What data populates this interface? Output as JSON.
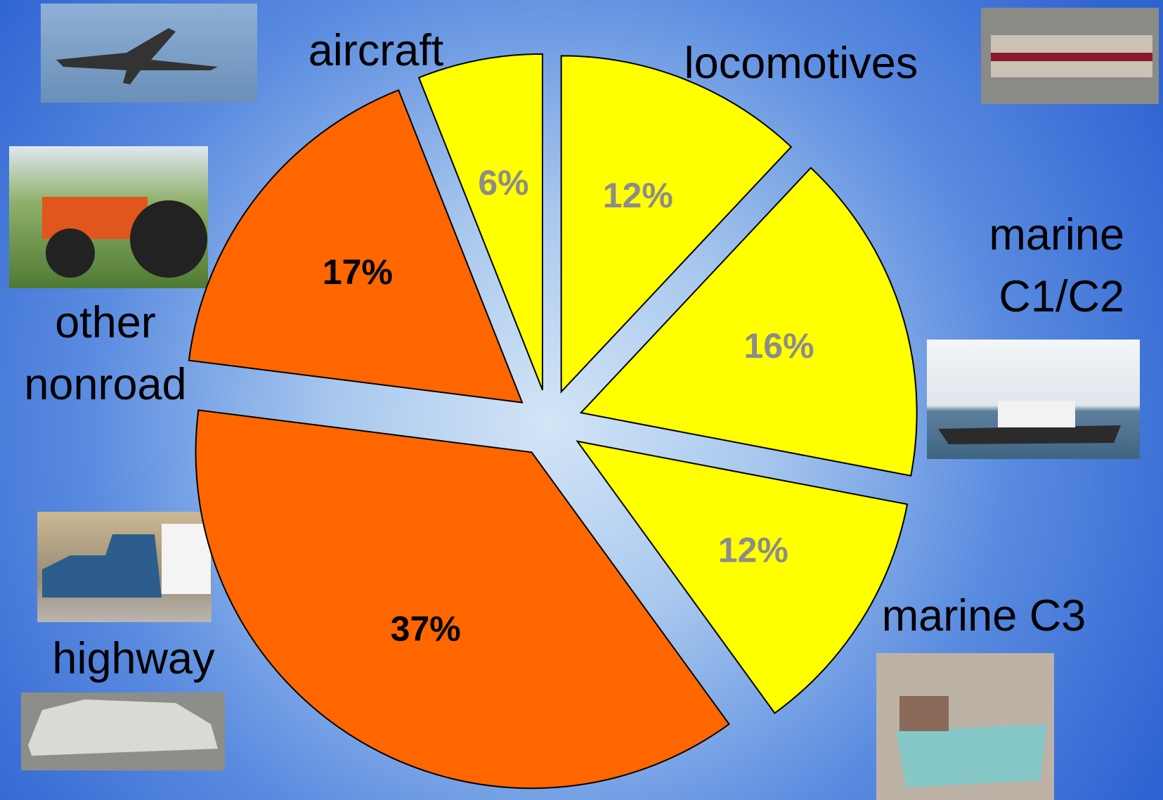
{
  "chart_data": {
    "type": "pie",
    "categories": [
      "locomotives",
      "marine C1/C2",
      "marine C3",
      "highway",
      "other nonroad",
      "aircraft"
    ],
    "values": [
      12,
      16,
      12,
      37,
      17,
      6
    ],
    "value_labels": [
      "12%",
      "16%",
      "12%",
      "37%",
      "17%",
      "6%"
    ],
    "colors": [
      "#ffff00",
      "#ffff00",
      "#ffff00",
      "#ff6600",
      "#ff6600",
      "#ffff00"
    ],
    "label_colors": [
      "#8c8c8c",
      "#8c8c8c",
      "#8c8c8c",
      "#000000",
      "#000000",
      "#8c8c8c"
    ]
  }
}
